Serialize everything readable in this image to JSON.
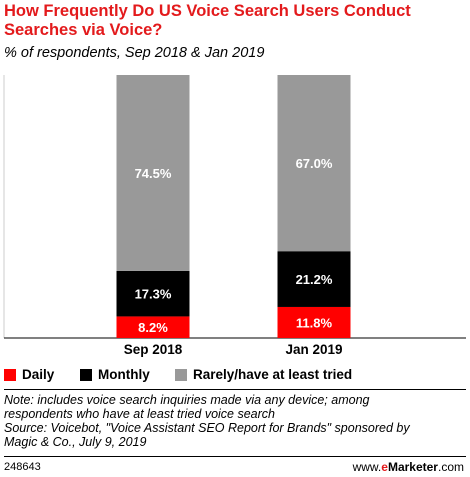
{
  "header": {
    "title": "How Frequently Do US Voice Search Users Conduct Searches via Voice?",
    "subtitle": "% of respondents, Sep 2018 & Jan 2019"
  },
  "chart_data": {
    "type": "bar",
    "stacked": true,
    "categories": [
      "Sep 2018",
      "Jan 2019"
    ],
    "series": [
      {
        "name": "Daily",
        "color": "#ff0000",
        "values": [
          8.2,
          11.8
        ],
        "labels": [
          "8.2%",
          "11.8%"
        ]
      },
      {
        "name": "Monthly",
        "color": "#000000",
        "values": [
          17.3,
          21.2
        ],
        "labels": [
          "17.3%",
          "21.2%"
        ]
      },
      {
        "name": "Rarely/have at least tried",
        "color": "#999999",
        "values": [
          74.5,
          67.0
        ],
        "labels": [
          "74.5%",
          "67.0%"
        ]
      }
    ],
    "ylim": [
      0,
      100
    ],
    "grid": false,
    "legend_position": "bottom"
  },
  "legend": {
    "items": [
      {
        "label": "Daily",
        "color": "#ff0000"
      },
      {
        "label": "Monthly",
        "color": "#000000"
      },
      {
        "label": "Rarely/have at least tried",
        "color": "#999999"
      }
    ]
  },
  "note": {
    "line1": "Note: includes voice search inquiries made via any device; among",
    "line2": "respondents who have at least tried voice search",
    "line3": "Source: Voicebot, \"Voice Assistant SEO Report for Brands\" sponsored by",
    "line4": "Magic & Co., July 9, 2019"
  },
  "footer": {
    "chart_id": "248643",
    "brand_prefix": "www.",
    "brand_e": "e",
    "brand_rest": "Marketer",
    "brand_suffix": ".com"
  }
}
